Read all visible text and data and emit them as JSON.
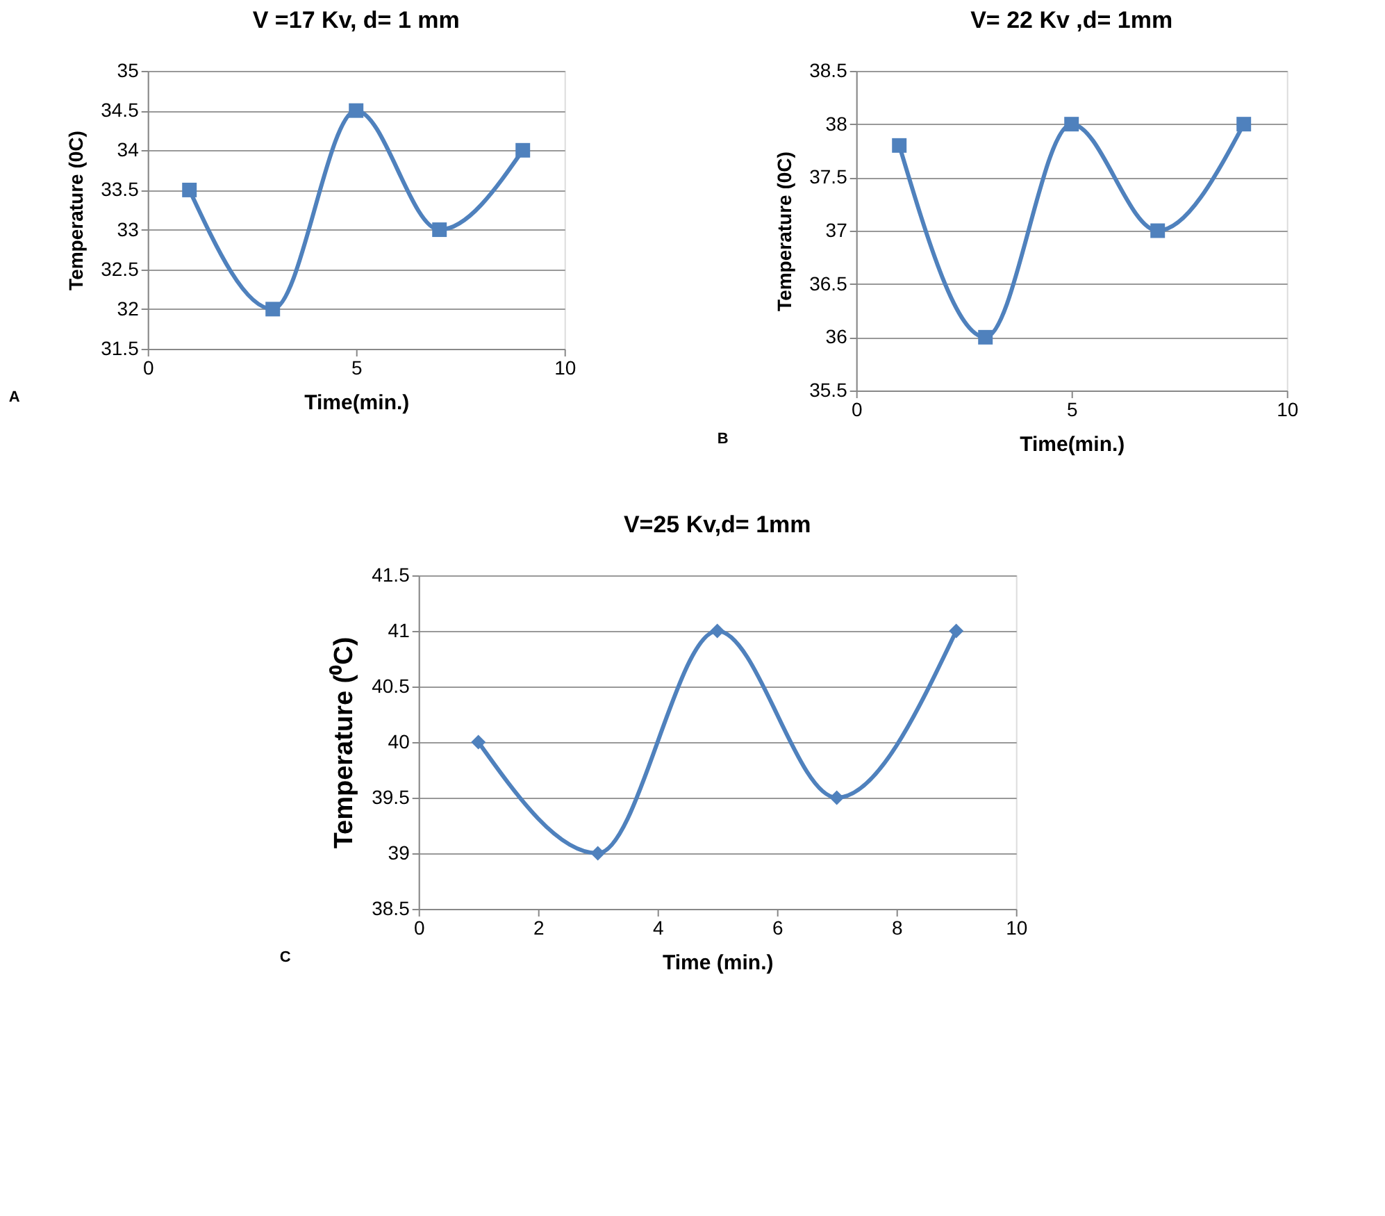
{
  "chart_data": [
    {
      "type": "line",
      "title": "V =17 Kv, d= 1 mm",
      "xlabel": "Time(min.)",
      "ylabel": "Temperature (0C)",
      "x": [
        1,
        3,
        5,
        7,
        9
      ],
      "series": [
        {
          "color": "#4f81bd",
          "values": [
            33.5,
            32,
            34.5,
            33,
            34
          ]
        }
      ],
      "xlim": [
        0,
        10
      ],
      "xticks": [
        0,
        5,
        10
      ],
      "ylim": [
        31.5,
        35
      ],
      "yticks": [
        31.5,
        32,
        32.5,
        33,
        33.5,
        34,
        34.5,
        35
      ],
      "grid": "y",
      "marker": "square",
      "annotations": [
        "A"
      ]
    },
    {
      "type": "line",
      "title": "V= 22 Kv ,d= 1mm",
      "xlabel": "Time(min.)",
      "ylabel": "Temperature (0C)",
      "x": [
        1,
        3,
        5,
        7,
        9
      ],
      "series": [
        {
          "color": "#4f81bd",
          "values": [
            37.8,
            36,
            38,
            37,
            38
          ]
        }
      ],
      "xlim": [
        0,
        10
      ],
      "xticks": [
        0,
        5,
        10
      ],
      "ylim": [
        35.5,
        38.5
      ],
      "yticks": [
        35.5,
        36,
        36.5,
        37,
        37.5,
        38,
        38.5
      ],
      "grid": "y",
      "marker": "square",
      "annotations": [
        "B"
      ]
    },
    {
      "type": "line",
      "title": "V=25 Kv,d= 1mm",
      "xlabel": "Time (min.)",
      "ylabel": "Temperature (⁰C)",
      "x": [
        1,
        3,
        5,
        7,
        9
      ],
      "series": [
        {
          "color": "#4f81bd",
          "values": [
            40,
            39,
            41,
            39.5,
            41
          ]
        }
      ],
      "xlim": [
        0,
        10
      ],
      "xticks": [
        0,
        2,
        4,
        6,
        8,
        10
      ],
      "ylim": [
        38.5,
        41.5
      ],
      "yticks": [
        38.5,
        39,
        39.5,
        40,
        40.5,
        41,
        41.5
      ],
      "grid": "y",
      "marker": "diamond",
      "annotations": [
        "C"
      ]
    }
  ]
}
